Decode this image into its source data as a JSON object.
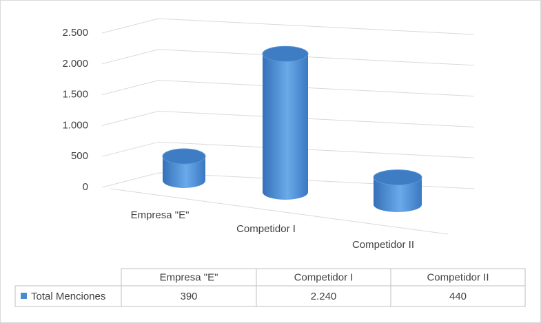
{
  "chart_data": {
    "type": "cylinder3d",
    "categories": [
      "Empresa \"E\"",
      "Competidor I",
      "Competidor II"
    ],
    "series": [
      {
        "name": "Total Menciones",
        "color": "#4a8ad4",
        "values": [
          390,
          2240,
          440
        ],
        "value_labels": [
          "390",
          "2.240",
          "440"
        ]
      }
    ],
    "ylim": [
      0,
      2500
    ],
    "yticks": [
      0,
      500,
      {
        "value": 1000,
        "label": "1.000"
      },
      {
        "value": 1500,
        "label": "1.500"
      },
      {
        "value": 2000,
        "label": "2.000"
      },
      {
        "value": 2500,
        "label": "2.500"
      }
    ],
    "grid": true,
    "data_table": true
  }
}
